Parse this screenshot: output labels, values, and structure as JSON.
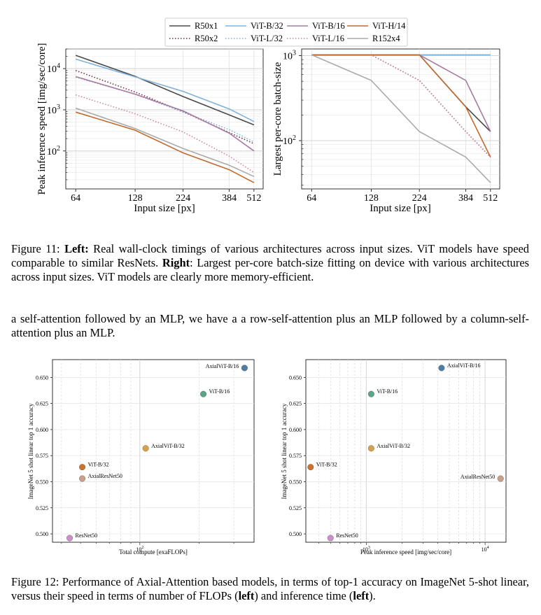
{
  "colors": {
    "R50x1": "#4a4a4a",
    "R50x2": "#7a2e3f",
    "ViT-B/32": "#7fb2dc",
    "ViT-L/32": "#7fb2dc",
    "ViT-B/16": "#a87aa0",
    "ViT-L/16": "#c9899e",
    "ViT-H/14": "#c06a2e",
    "R152x4": "#aaaaaa",
    "axial_vit_b16": "#4d7ea8",
    "vit_b16": "#5aa688",
    "axial_vit_b32": "#d9a24a",
    "vit_b32": "#c9732e",
    "axial_resnet50": "#c9a08a",
    "resnet50": "#cc8fc9"
  },
  "legend": {
    "items": [
      {
        "label": "R50x1",
        "key": "R50x1",
        "style": "solid"
      },
      {
        "label": "ViT-B/32",
        "key": "ViT-B/32",
        "style": "solid"
      },
      {
        "label": "ViT-B/16",
        "key": "ViT-B/16",
        "style": "solid"
      },
      {
        "label": "ViT-H/14",
        "key": "ViT-H/14",
        "style": "solid"
      },
      {
        "label": "R50x2",
        "key": "R50x2",
        "style": "dotted"
      },
      {
        "label": "ViT-L/32",
        "key": "ViT-L/32",
        "style": "dotted"
      },
      {
        "label": "ViT-L/16",
        "key": "ViT-L/16",
        "style": "dotted"
      },
      {
        "label": "R152x4",
        "key": "R152x4",
        "style": "solid"
      }
    ]
  },
  "figure11": {
    "left_ylabel": "Peak inference speed [img/sec/core]",
    "right_ylabel": "Largest per-core batch-size",
    "xlabel": "Input size [px]",
    "xticks": [
      "64",
      "128",
      "224",
      "384",
      "512"
    ],
    "left_yticks": [
      "10",
      "10",
      "10"
    ],
    "left_yticks_exp": [
      "2",
      "3",
      "4"
    ],
    "right_yticks": [
      "10",
      "10"
    ],
    "right_yticks_exp": [
      "2",
      "3"
    ]
  },
  "caption11": {
    "label": "Figure 11:",
    "left_bold": "Left:",
    "left_text": " Real wall-clock timings of various architectures across input sizes. ViT models have speed comparable to similar ResNets.",
    "right_bold": "Right",
    "right_text": ": Largest per-core batch-size fitting on device with various architectures across input sizes. ViT models are clearly more memory-efficient."
  },
  "body_text": "a self-attention followed by an MLP, we have a a row-self-attention plus an MLP followed by a column-self-attention plus an MLP.",
  "figure12": {
    "left_xlabel": "Total compute [exaFLOPs]",
    "right_xlabel": "Peak inference speed [img/sec/core]",
    "ylabel": "ImageNet 5 shot linear top 1 accuracy",
    "yticks": [
      "0.650",
      "0.625",
      "0.600",
      "0.575",
      "0.550",
      "0.525",
      "0.500"
    ],
    "left_xtick": "10",
    "left_xtick_exp": "2",
    "right_xticks": [
      "10",
      "10"
    ],
    "right_xticks_exp": [
      "3",
      "4"
    ]
  },
  "caption12": {
    "label": "Figure 12:",
    "text_a": " Performance of Axial-Attention based models, in terms of top-1 accuracy on ImageNet 5-shot linear, versus their speed in terms of number of FLOPs (",
    "bold_a": "left",
    "text_b": ") and inference time (",
    "bold_b": "left",
    "text_c": ")."
  },
  "chart_data": [
    {
      "type": "line",
      "x": [
        64,
        128,
        224,
        384,
        512
      ],
      "xlabel": "Input size [px]",
      "ylabel": "Peak inference speed [img/sec/core]",
      "yscale": "log",
      "xscale": "log",
      "ylim": [
        12,
        30000
      ],
      "series": [
        {
          "name": "R50x1",
          "values": [
            21000,
            6500,
            2100,
            750,
            430
          ]
        },
        {
          "name": "R50x2",
          "values": [
            9000,
            2700,
            900,
            280,
            150
          ]
        },
        {
          "name": "ViT-B/32",
          "values": [
            17000,
            6300,
            2800,
            1050,
            520
          ]
        },
        {
          "name": "ViT-L/32",
          "values": [
            6200,
            2400,
            880,
            330,
            165
          ]
        },
        {
          "name": "ViT-B/16",
          "values": [
            6400,
            2400,
            940,
            270,
            100
          ]
        },
        {
          "name": "ViT-L/16",
          "values": [
            2300,
            800,
            290,
            75,
            30
          ]
        },
        {
          "name": "ViT-H/14",
          "values": [
            880,
            320,
            90,
            35,
            17
          ]
        },
        {
          "name": "R152x4",
          "values": [
            1100,
            350,
            115,
            45,
            24
          ]
        }
      ]
    },
    {
      "type": "line",
      "x": [
        64,
        128,
        224,
        384,
        512
      ],
      "xlabel": "Input size [px]",
      "ylabel": "Largest per-core batch-size",
      "yscale": "log",
      "xscale": "log",
      "ylim": [
        27,
        1200
      ],
      "series": [
        {
          "name": "R50x1",
          "values": [
            1024,
            1024,
            1024,
            250,
            128
          ]
        },
        {
          "name": "R50x2",
          "values": [
            1024,
            1024,
            512,
            128,
            64
          ]
        },
        {
          "name": "ViT-B/32",
          "values": [
            1024,
            1024,
            1024,
            1024,
            1024
          ]
        },
        {
          "name": "ViT-L/32",
          "values": [
            1024,
            1024,
            1024,
            1024,
            1024
          ]
        },
        {
          "name": "ViT-B/16",
          "values": [
            1024,
            1024,
            1024,
            512,
            128
          ]
        },
        {
          "name": "ViT-L/16",
          "values": [
            1024,
            1024,
            512,
            128,
            64
          ]
        },
        {
          "name": "ViT-H/14",
          "values": [
            1024,
            1024,
            1024,
            250,
            64
          ]
        },
        {
          "name": "R152x4",
          "values": [
            1024,
            512,
            128,
            64,
            32
          ]
        }
      ]
    },
    {
      "type": "scatter",
      "xlabel": "Total compute [exaFLOPs]",
      "ylabel": "ImageNet 5 shot linear top 1 accuracy",
      "xscale": "log",
      "xlim": [
        36,
        380
      ],
      "ylim": [
        0.492,
        0.667
      ],
      "points": [
        {
          "label": "AxialViT-B/16",
          "x": 340,
          "y": 0.659,
          "color_key": "axial_vit_b16"
        },
        {
          "label": "ViT-B/16",
          "x": 210,
          "y": 0.634,
          "color_key": "vit_b16"
        },
        {
          "label": "AxialViT-B/32",
          "x": 107,
          "y": 0.582,
          "color_key": "axial_vit_b32"
        },
        {
          "label": "ViT-B/32",
          "x": 51,
          "y": 0.564,
          "color_key": "vit_b32"
        },
        {
          "label": "AxialResNet50",
          "x": 51,
          "y": 0.553,
          "color_key": "axial_resnet50"
        },
        {
          "label": "ResNet50",
          "x": 44,
          "y": 0.496,
          "color_key": "resnet50"
        }
      ]
    },
    {
      "type": "scatter",
      "xlabel": "Peak inference speed [img/sec/core]",
      "ylabel": "ImageNet 5 shot linear top 1 accuracy",
      "xscale": "log",
      "xlim": [
        310,
        15000
      ],
      "ylim": [
        0.492,
        0.667
      ],
      "points": [
        {
          "label": "AxialViT-B/16",
          "x": 4300,
          "y": 0.659,
          "color_key": "axial_vit_b16"
        },
        {
          "label": "ViT-B/16",
          "x": 1100,
          "y": 0.634,
          "color_key": "vit_b16"
        },
        {
          "label": "AxialViT-B/32",
          "x": 1100,
          "y": 0.582,
          "color_key": "axial_vit_b32"
        },
        {
          "label": "ViT-B/32",
          "x": 340,
          "y": 0.564,
          "color_key": "vit_b32"
        },
        {
          "label": "AxialResNet50",
          "x": 13500,
          "y": 0.553,
          "color_key": "axial_resnet50"
        },
        {
          "label": "ResNet50",
          "x": 500,
          "y": 0.496,
          "color_key": "resnet50"
        }
      ]
    }
  ]
}
